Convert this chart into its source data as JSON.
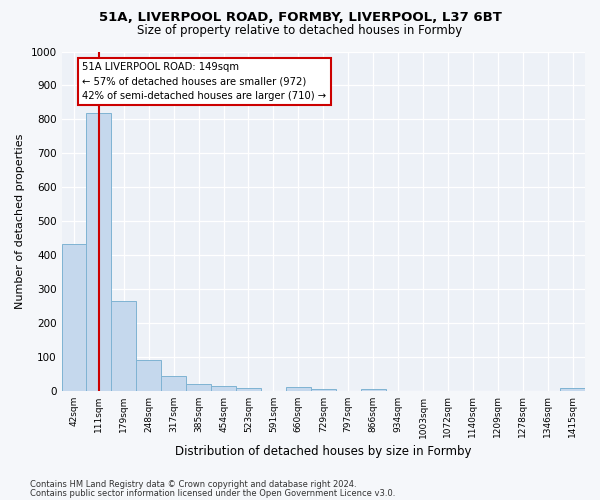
{
  "title_line1": "51A, LIVERPOOL ROAD, FORMBY, LIVERPOOL, L37 6BT",
  "title_line2": "Size of property relative to detached houses in Formby",
  "xlabel": "Distribution of detached houses by size in Formby",
  "ylabel": "Number of detached properties",
  "bar_labels": [
    "42sqm",
    "111sqm",
    "179sqm",
    "248sqm",
    "317sqm",
    "385sqm",
    "454sqm",
    "523sqm",
    "591sqm",
    "660sqm",
    "729sqm",
    "797sqm",
    "866sqm",
    "934sqm",
    "1003sqm",
    "1072sqm",
    "1140sqm",
    "1209sqm",
    "1278sqm",
    "1346sqm",
    "1415sqm"
  ],
  "bar_values": [
    433,
    820,
    265,
    91,
    44,
    18,
    13,
    7,
    0,
    10,
    5,
    0,
    5,
    0,
    0,
    0,
    0,
    0,
    0,
    0,
    7
  ],
  "bar_color": "#c5d8ed",
  "bar_edge_color": "#7fb3d3",
  "property_label": "51A LIVERPOOL ROAD: 149sqm",
  "annotation_line1": "← 57% of detached houses are smaller (972)",
  "annotation_line2": "42% of semi-detached houses are larger (710) →",
  "vline_color": "#cc0000",
  "vline_x": 1.0,
  "ylim": [
    0,
    1000
  ],
  "yticks": [
    0,
    100,
    200,
    300,
    400,
    500,
    600,
    700,
    800,
    900,
    1000
  ],
  "footer1": "Contains HM Land Registry data © Crown copyright and database right 2024.",
  "footer2": "Contains public sector information licensed under the Open Government Licence v3.0.",
  "fig_bg": "#f5f7fa",
  "plot_bg": "#edf1f7"
}
